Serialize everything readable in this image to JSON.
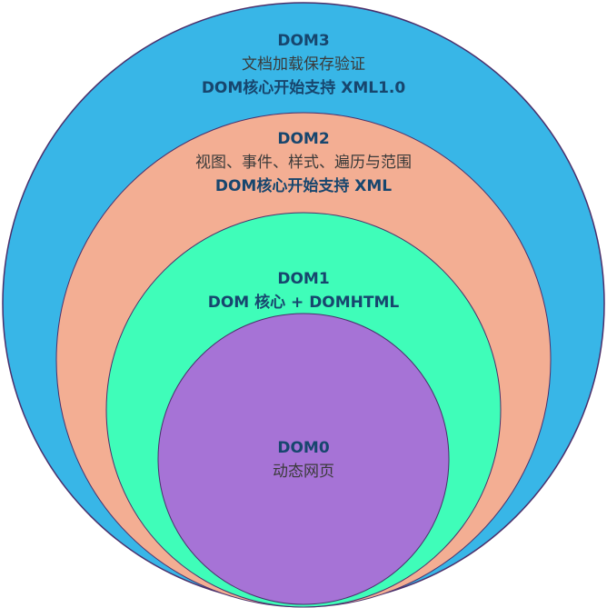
{
  "diagram": {
    "rings": [
      {
        "title": "DOM3",
        "line1": "文档加载保存验证",
        "line2": "DOM核心开始支持 XML1.0",
        "color": "#38b6e7"
      },
      {
        "title": "DOM2",
        "line1": "视图、事件、样式、遍历与范围",
        "line2": "DOM核心开始支持 XML",
        "color": "#f3ae93"
      },
      {
        "title": "DOM1",
        "line1": "DOM 核心 + DOMHTML",
        "color": "#3ffdb9"
      },
      {
        "title": "DOM0",
        "line1": "动态网页",
        "color": "#a673d6"
      }
    ],
    "outline_color": "#4a2f6b",
    "title_color": "#17466e"
  }
}
